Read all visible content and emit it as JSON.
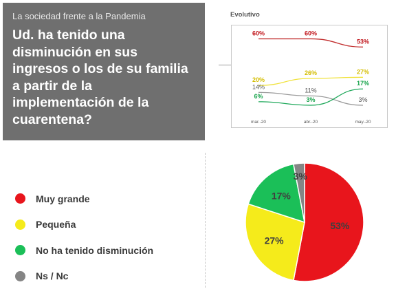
{
  "header": {
    "subtitle": "La sociedad frente a la Pandemia",
    "title": "Ud. ha tenido una disminución en sus ingresos o los de su familia a partir de la implementación de la cuarentena?"
  },
  "line_chart_title": "Evolutivo",
  "legend": [
    {
      "label": "Muy grande",
      "color": "#e8151c"
    },
    {
      "label": "Pequeña",
      "color": "#f5eb1b"
    },
    {
      "label": "No ha tenido disminución",
      "color": "#1bbf58"
    },
    {
      "label": "Ns / Nc",
      "color": "#858585"
    }
  ],
  "chart_data": [
    {
      "type": "line",
      "title": "Evolutivo",
      "categories": [
        "mar.-20",
        "abr.-20",
        "may.-20"
      ],
      "series": [
        {
          "name": "Muy grande",
          "color": "#c02a2a",
          "label_color": "#c0141a",
          "values": [
            60,
            60,
            53
          ]
        },
        {
          "name": "Pequeña",
          "color": "#f0e23c",
          "label_color": "#d4bd00",
          "values": [
            20,
            26,
            27
          ]
        },
        {
          "name": "Ns / Nc",
          "color": "#9a9a9a",
          "label_color": "#555555",
          "values": [
            14,
            11,
            3
          ]
        },
        {
          "name": "No ha tenido disminución",
          "color": "#1ea85a",
          "label_color": "#16a34a",
          "values": [
            6,
            3,
            17
          ]
        }
      ],
      "grid": false
    },
    {
      "type": "pie",
      "categories": [
        "Muy grande",
        "Pequeña",
        "No ha tenido disminución",
        "Ns / Nc"
      ],
      "values": [
        53,
        27,
        17,
        3
      ],
      "labels": [
        "53%",
        "27%",
        "17%",
        "3%"
      ],
      "colors": [
        "#e8151c",
        "#f5eb1b",
        "#1bbf58",
        "#858585"
      ]
    }
  ]
}
